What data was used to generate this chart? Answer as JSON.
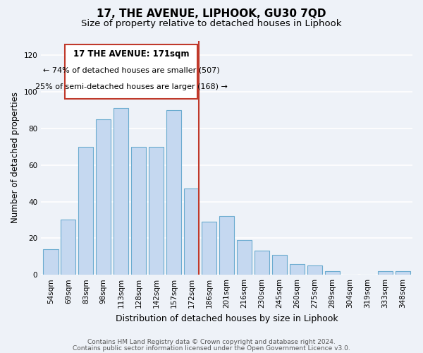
{
  "title": "17, THE AVENUE, LIPHOOK, GU30 7QD",
  "subtitle": "Size of property relative to detached houses in Liphook",
  "xlabel": "Distribution of detached houses by size in Liphook",
  "ylabel": "Number of detached properties",
  "categories": [
    "54sqm",
    "69sqm",
    "83sqm",
    "98sqm",
    "113sqm",
    "128sqm",
    "142sqm",
    "157sqm",
    "172sqm",
    "186sqm",
    "201sqm",
    "216sqm",
    "230sqm",
    "245sqm",
    "260sqm",
    "275sqm",
    "289sqm",
    "304sqm",
    "319sqm",
    "333sqm",
    "348sqm"
  ],
  "values": [
    14,
    30,
    70,
    85,
    91,
    70,
    70,
    90,
    47,
    29,
    32,
    19,
    13,
    11,
    6,
    5,
    2,
    0,
    0,
    2,
    2
  ],
  "bar_color": "#c5d8f0",
  "bar_edge_color": "#6aabcf",
  "marker_line_color": "#c0392b",
  "annotation_line1": "17 THE AVENUE: 171sqm",
  "annotation_line2": "← 74% of detached houses are smaller (507)",
  "annotation_line3": "25% of semi-detached houses are larger (168) →",
  "annotation_box_color": "#c0392b",
  "ylim": [
    0,
    128
  ],
  "yticks": [
    0,
    20,
    40,
    60,
    80,
    100,
    120
  ],
  "footer1": "Contains HM Land Registry data © Crown copyright and database right 2024.",
  "footer2": "Contains public sector information licensed under the Open Government Licence v3.0.",
  "bg_color": "#eef2f8",
  "plot_bg_color": "#eef2f8",
  "grid_color": "#ffffff",
  "title_fontsize": 11,
  "subtitle_fontsize": 9.5,
  "xlabel_fontsize": 9,
  "ylabel_fontsize": 8.5,
  "tick_fontsize": 7.5,
  "footer_fontsize": 6.5,
  "annotation_fontsize": 8,
  "annotation_title_fontsize": 8.5
}
